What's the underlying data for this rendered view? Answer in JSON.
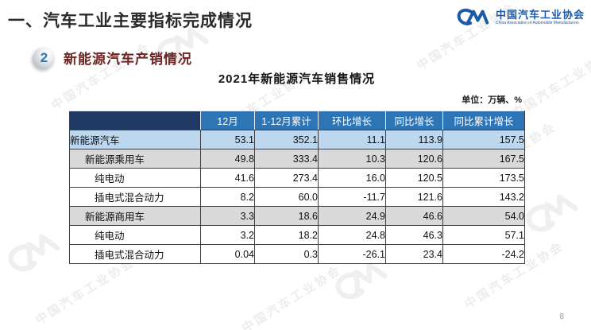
{
  "slide": {
    "heading": "一、汽车工业主要指标完成情况",
    "section_number": "2",
    "section_title": "新能源汽车产销情况",
    "table_title": "2021年新能源汽车销售情况",
    "unit_note": "单位：万辆、%",
    "page_number": "8"
  },
  "logo": {
    "org_name_cn": "中国汽车工业协会",
    "org_name_en": "China Association of Automobile Manufacturers",
    "brand_color": "#1d5aa6"
  },
  "watermark": {
    "text": "中国汽车工业协会"
  },
  "colors": {
    "header_corner_bg": "#1f3864",
    "header_bg": "#2e75b6",
    "row_highlight_blue": "#bdd7ee",
    "row_highlight_gray": "#d9d9d9",
    "section_title_color": "#6e2423"
  },
  "table": {
    "columns": [
      "",
      "12月",
      "1-12月累计",
      "环比增长",
      "同比增长",
      "同比累计增长"
    ],
    "rows": [
      {
        "label": "新能源汽车",
        "indent": 0,
        "style": "highlight-blue",
        "values": [
          "53.1",
          "352.1",
          "11.1",
          "113.9",
          "157.5"
        ]
      },
      {
        "label": "新能源乘用车",
        "indent": 1,
        "style": "highlight-gray",
        "values": [
          "49.8",
          "333.4",
          "10.3",
          "120.6",
          "167.5"
        ]
      },
      {
        "label": "纯电动",
        "indent": 2,
        "style": "plain",
        "values": [
          "41.6",
          "273.4",
          "16.0",
          "120.5",
          "173.5"
        ]
      },
      {
        "label": "插电式混合动力",
        "indent": 2,
        "style": "plain",
        "values": [
          "8.2",
          "60.0",
          "-11.7",
          "121.6",
          "143.2"
        ]
      },
      {
        "label": "新能源商用车",
        "indent": 1,
        "style": "highlight-gray",
        "values": [
          "3.3",
          "18.6",
          "24.9",
          "46.6",
          "54.0"
        ]
      },
      {
        "label": "纯电动",
        "indent": 2,
        "style": "plain",
        "values": [
          "3.2",
          "18.2",
          "24.8",
          "46.3",
          "57.1"
        ]
      },
      {
        "label": "插电式混合动力",
        "indent": 2,
        "style": "plain",
        "values": [
          "0.04",
          "0.3",
          "-26.1",
          "23.4",
          "-24.2"
        ]
      }
    ]
  },
  "chart_data": {
    "type": "table",
    "title": "2021年新能源汽车销售情况",
    "unit": "万辆、%",
    "columns": [
      "",
      "12月",
      "1-12月累计",
      "环比增长",
      "同比增长",
      "同比累计增长"
    ],
    "rows": [
      [
        "新能源汽车",
        53.1,
        352.1,
        11.1,
        113.9,
        157.5
      ],
      [
        "新能源乘用车",
        49.8,
        333.4,
        10.3,
        120.6,
        167.5
      ],
      [
        "纯电动",
        41.6,
        273.4,
        16.0,
        120.5,
        173.5
      ],
      [
        "插电式混合动力",
        8.2,
        60.0,
        -11.7,
        121.6,
        143.2
      ],
      [
        "新能源商用车",
        3.3,
        18.6,
        24.9,
        46.6,
        54.0
      ],
      [
        "纯电动",
        3.2,
        18.2,
        24.8,
        46.3,
        57.1
      ],
      [
        "插电式混合动力",
        0.04,
        0.3,
        -26.1,
        23.4,
        -24.2
      ]
    ]
  }
}
